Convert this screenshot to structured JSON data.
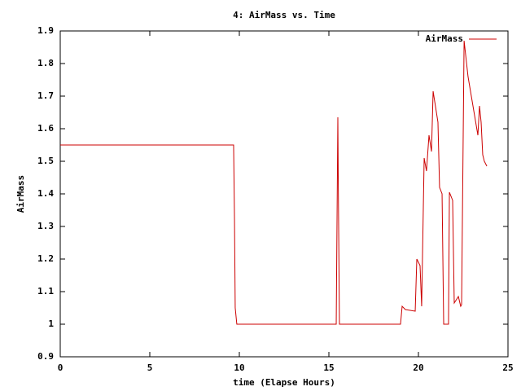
{
  "chart_data": {
    "type": "line",
    "title": "4: AirMass vs. Time",
    "xlabel": "time (Elapse Hours)",
    "ylabel": "AirMass",
    "x": [
      0,
      9.68,
      9.73,
      9.77,
      9.86,
      15.41,
      15.5,
      15.52,
      15.59,
      19.0,
      19.09,
      19.27,
      19.82,
      19.91,
      20.09,
      20.18,
      20.32,
      20.45,
      20.59,
      20.73,
      20.82,
      21.09,
      21.18,
      21.32,
      21.41,
      21.68,
      21.73,
      21.91,
      22.0,
      22.23,
      22.36,
      22.41,
      22.55,
      22.77,
      23.32,
      23.41,
      23.5,
      23.59,
      23.68,
      23.82
    ],
    "series": [
      {
        "name": "AirMass",
        "color": "#cc0000",
        "values": [
          1.55,
          1.55,
          1.32,
          1.05,
          1.0,
          1.0,
          1.635,
          1.47,
          1.0,
          1.0,
          1.055,
          1.045,
          1.04,
          1.2,
          1.18,
          1.055,
          1.51,
          1.47,
          1.58,
          1.53,
          1.715,
          1.62,
          1.42,
          1.4,
          1.0,
          1.0,
          1.405,
          1.38,
          1.065,
          1.085,
          1.055,
          1.06,
          1.87,
          1.76,
          1.58,
          1.67,
          1.62,
          1.52,
          1.5,
          1.485
        ]
      }
    ],
    "xlim": [
      0,
      25
    ],
    "xticks": [
      0,
      5,
      10,
      15,
      20,
      25
    ],
    "ylim": [
      0.9,
      1.9
    ],
    "yticks": [
      0.9,
      1,
      1.1,
      1.2,
      1.3,
      1.4,
      1.5,
      1.6,
      1.7,
      1.8,
      1.9
    ],
    "legend": "top-right",
    "grid": false
  }
}
